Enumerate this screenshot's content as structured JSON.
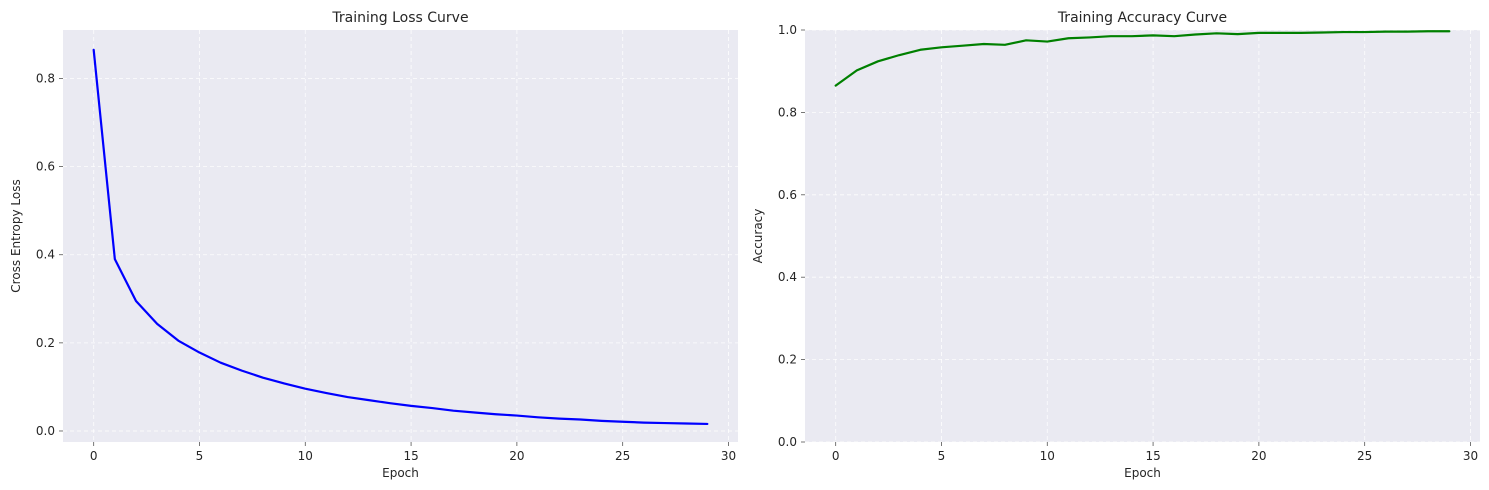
{
  "chart_data": [
    {
      "type": "line",
      "title": "Training Loss Curve",
      "xlabel": "Epoch",
      "ylabel": "Cross Entropy Loss",
      "xlim": [
        -1.45,
        30.45
      ],
      "ylim": [
        -0.025,
        0.91
      ],
      "xticks": [
        0,
        5,
        10,
        15,
        20,
        25,
        30
      ],
      "yticks": [
        0.0,
        0.2,
        0.4,
        0.6,
        0.8
      ],
      "ytick_decimals": 1,
      "grid": true,
      "series": [
        {
          "color": "#0000ff",
          "x": [
            0,
            1,
            2,
            3,
            4,
            5,
            6,
            7,
            8,
            9,
            10,
            11,
            12,
            13,
            14,
            15,
            16,
            17,
            18,
            19,
            20,
            21,
            22,
            23,
            24,
            25,
            26,
            27,
            28,
            29
          ],
          "y": [
            0.865,
            0.39,
            0.295,
            0.243,
            0.205,
            0.178,
            0.155,
            0.137,
            0.121,
            0.108,
            0.096,
            0.086,
            0.077,
            0.07,
            0.063,
            0.057,
            0.052,
            0.046,
            0.042,
            0.038,
            0.035,
            0.031,
            0.028,
            0.026,
            0.023,
            0.021,
            0.019,
            0.018,
            0.017,
            0.016
          ]
        }
      ]
    },
    {
      "type": "line",
      "title": "Training Accuracy Curve",
      "xlabel": "Epoch",
      "ylabel": "Accuracy",
      "xlim": [
        -1.45,
        30.45
      ],
      "ylim": [
        0.0,
        1.0
      ],
      "xticks": [
        0,
        5,
        10,
        15,
        20,
        25,
        30
      ],
      "yticks": [
        0.0,
        0.2,
        0.4,
        0.6,
        0.8,
        1.0
      ],
      "ytick_decimals": 1,
      "grid": true,
      "series": [
        {
          "color": "#008000",
          "x": [
            0,
            1,
            2,
            3,
            4,
            5,
            6,
            7,
            8,
            9,
            10,
            11,
            12,
            13,
            14,
            15,
            16,
            17,
            18,
            19,
            20,
            21,
            22,
            23,
            24,
            25,
            26,
            27,
            28,
            29
          ],
          "y": [
            0.865,
            0.902,
            0.924,
            0.939,
            0.952,
            0.958,
            0.962,
            0.966,
            0.964,
            0.975,
            0.972,
            0.98,
            0.982,
            0.985,
            0.985,
            0.987,
            0.985,
            0.989,
            0.992,
            0.99,
            0.993,
            0.993,
            0.993,
            0.994,
            0.995,
            0.995,
            0.996,
            0.996,
            0.997,
            0.997
          ]
        }
      ]
    }
  ]
}
